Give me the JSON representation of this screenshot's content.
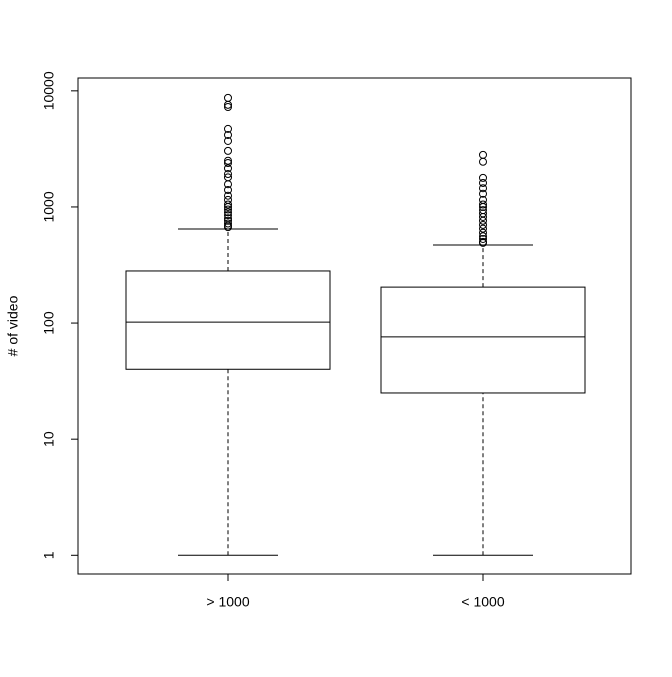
{
  "chart_data": {
    "type": "boxplot",
    "ylabel": "# of video",
    "log_scale": true,
    "categories": [
      "> 1000",
      "< 1000"
    ],
    "boxes": [
      {
        "min": 1,
        "q1": 40,
        "median": 102,
        "q3": 281,
        "max": 646,
        "outliers": [
          8700,
          7580,
          7250,
          4700,
          4170,
          3700,
          3040,
          2500,
          2390,
          2150,
          1920,
          1800,
          1570,
          1400,
          1250,
          1150,
          1050,
          1000,
          950,
          900,
          850,
          800,
          760,
          720,
          690,
          670
        ]
      },
      {
        "min": 1,
        "q1": 25,
        "median": 76,
        "q3": 204,
        "max": 470,
        "outliers": [
          2810,
          2450,
          1780,
          1610,
          1450,
          1300,
          1150,
          1050,
          1000,
          940,
          880,
          820,
          760,
          700,
          650,
          600,
          560,
          530,
          500,
          490
        ]
      }
    ],
    "ylim": [
      0.69,
      12900
    ],
    "yticks": [
      1,
      10,
      100,
      1000,
      10000
    ]
  }
}
